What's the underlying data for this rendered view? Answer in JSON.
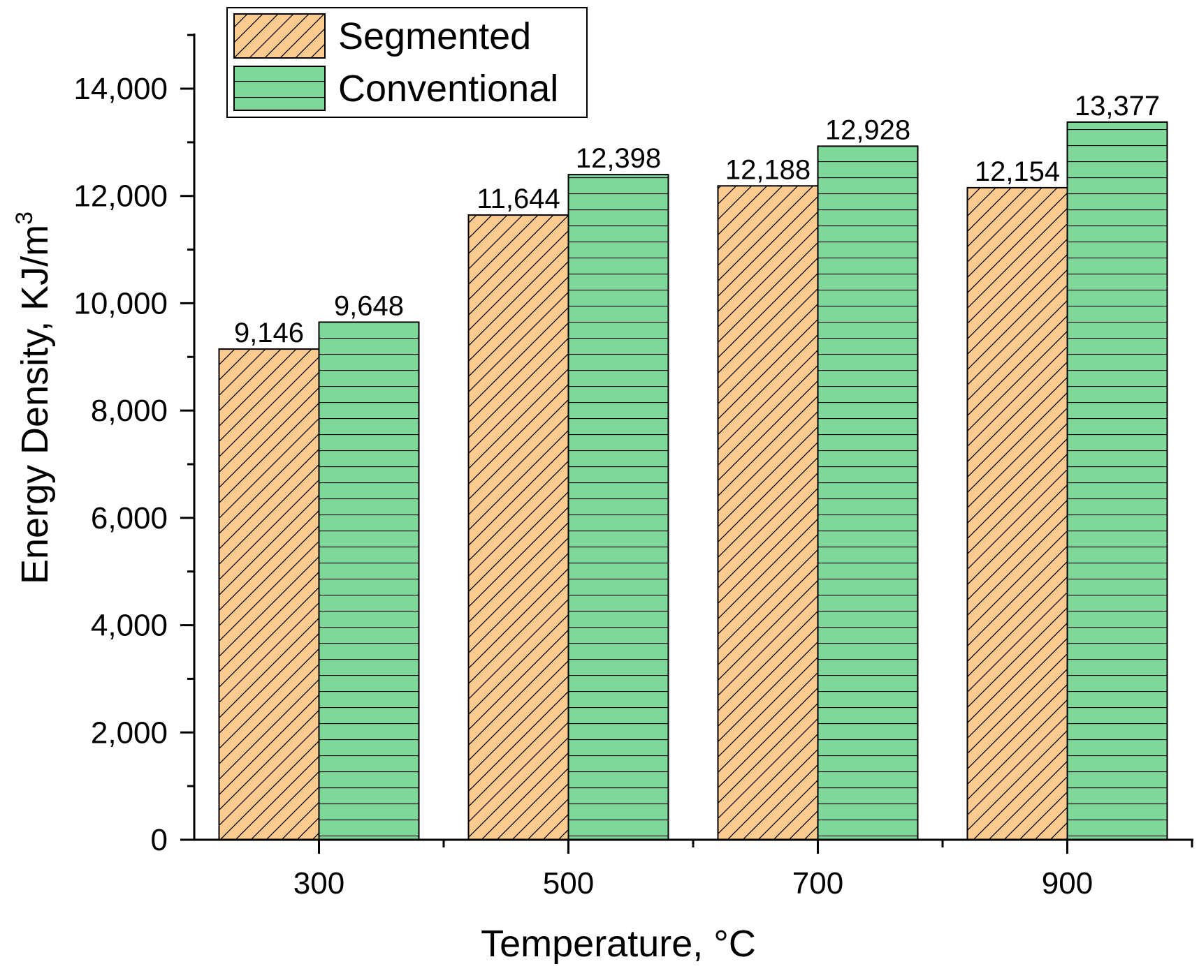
{
  "chart_data": {
    "type": "bar",
    "xlabel": "Temperature, °C",
    "ylabel": "Energy Density, KJ/m",
    "ylabel_superscript": "3",
    "categories": [
      "300",
      "500",
      "700",
      "900"
    ],
    "series": [
      {
        "name": "Segmented",
        "values": [
          9146,
          11644,
          12188,
          12154
        ],
        "labels": [
          "9,146",
          "11,644",
          "12,188",
          "12,154"
        ],
        "color": "#FDCB8F",
        "pattern": "diagonal-hatch"
      },
      {
        "name": "Conventional",
        "values": [
          9648,
          12398,
          12928,
          13377
        ],
        "labels": [
          "9,648",
          "12,398",
          "12,928",
          "13,377"
        ],
        "color": "#7FD89A",
        "pattern": "horizontal-lines"
      }
    ],
    "ylim": [
      0,
      15000
    ],
    "yticks": [
      0,
      2000,
      4000,
      6000,
      8000,
      10000,
      12000,
      14000
    ],
    "ytick_labels": [
      "0",
      "2,000",
      "4,000",
      "6,000",
      "8,000",
      "10,000",
      "12,000",
      "14,000"
    ],
    "grid": false,
    "legend_position": "top-left"
  }
}
